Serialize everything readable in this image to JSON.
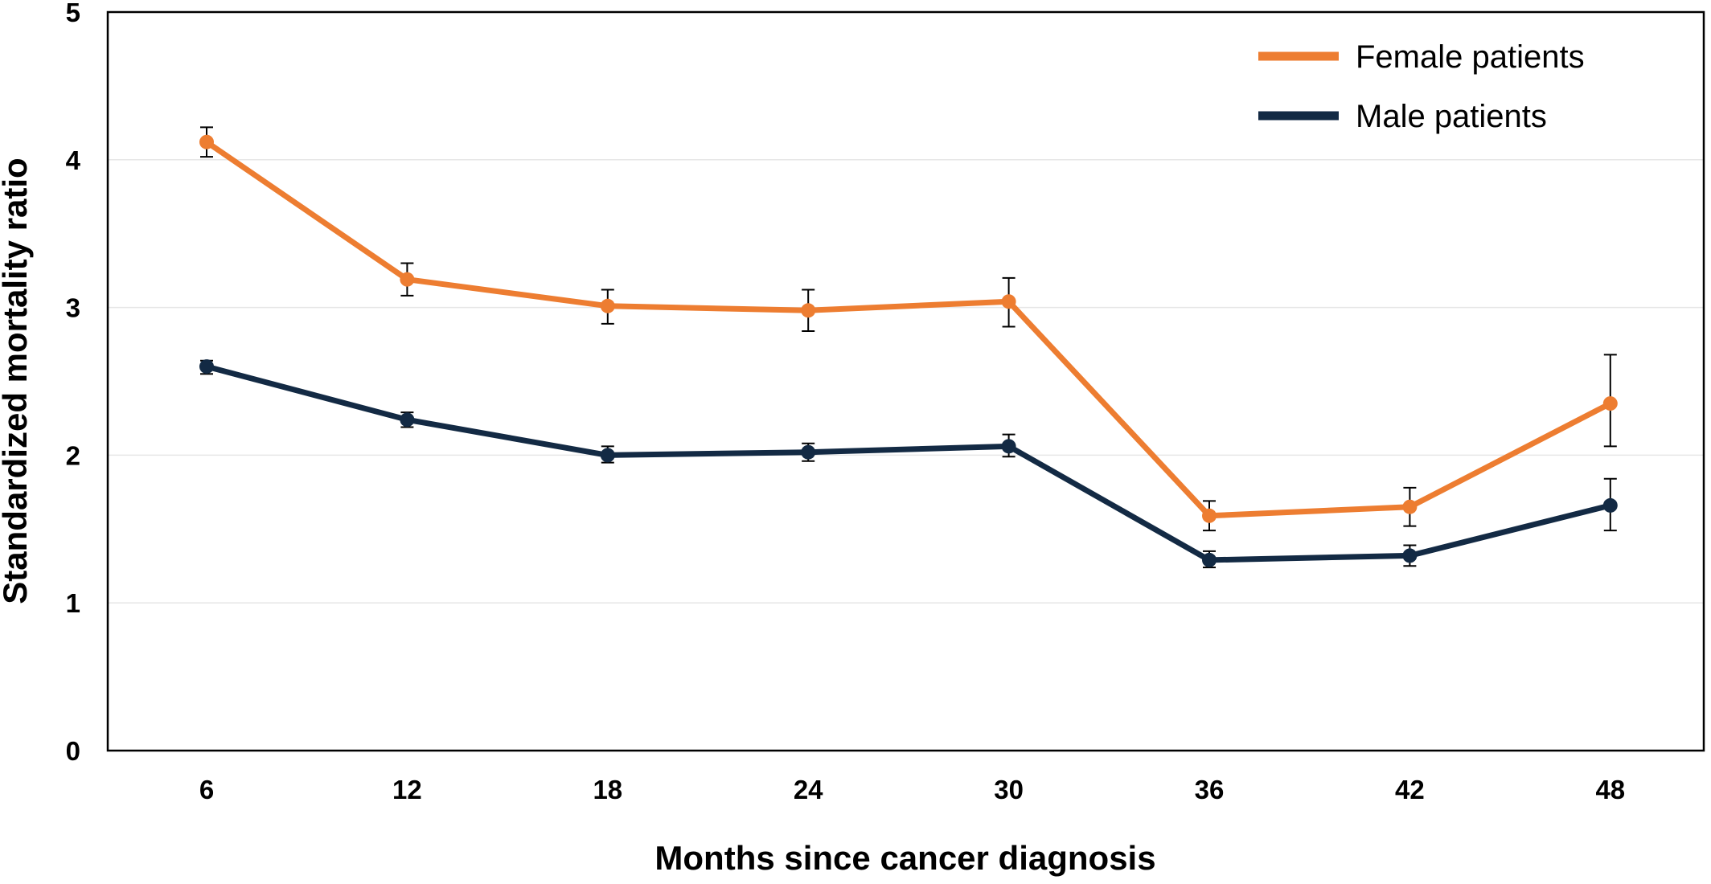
{
  "chart_data": {
    "type": "line",
    "title": "",
    "xlabel": "Months since cancer diagnosis",
    "ylabel": "Standardized mortality ratio",
    "categories": [
      "6",
      "12",
      "18",
      "24",
      "30",
      "36",
      "42",
      "48"
    ],
    "ylim": [
      0,
      5
    ],
    "yticks": [
      "0",
      "1",
      "2",
      "3",
      "4",
      "5"
    ],
    "grid": "horizontal",
    "legend_position": "top-right",
    "series": [
      {
        "name": "Female patients",
        "color": "#ED7D31",
        "values": [
          4.12,
          3.19,
          3.01,
          2.98,
          3.04,
          1.59,
          1.65,
          2.35
        ],
        "error_low": [
          4.02,
          3.08,
          2.89,
          2.84,
          2.87,
          1.49,
          1.52,
          2.06
        ],
        "error_high": [
          4.22,
          3.3,
          3.12,
          3.12,
          3.2,
          1.69,
          1.78,
          2.68
        ]
      },
      {
        "name": "Male patients",
        "color": "#132A44",
        "values": [
          2.6,
          2.24,
          2.0,
          2.02,
          2.06,
          1.29,
          1.32,
          1.66
        ],
        "error_low": [
          2.55,
          2.19,
          1.95,
          1.96,
          1.99,
          1.24,
          1.25,
          1.49
        ],
        "error_high": [
          2.64,
          2.29,
          2.06,
          2.08,
          2.14,
          1.35,
          1.39,
          1.84
        ]
      }
    ]
  }
}
